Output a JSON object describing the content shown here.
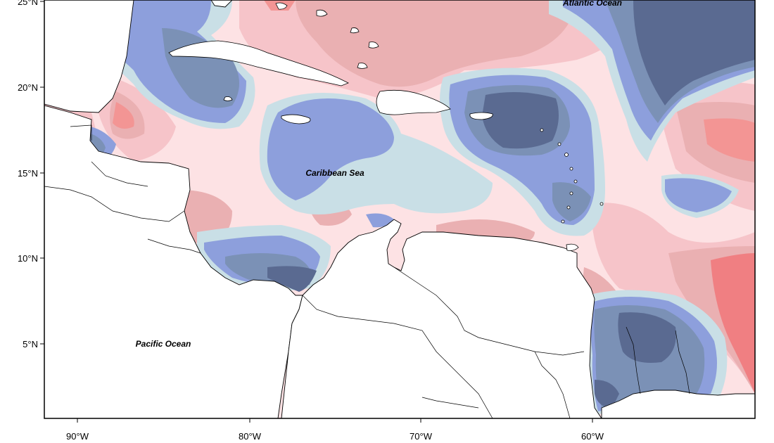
{
  "map": {
    "lat_ticks": [
      "25°N",
      "20°N",
      "15°N",
      "10°N",
      "5°N"
    ],
    "lon_ticks": [
      "90°W",
      "80°W",
      "70°W",
      "60°W"
    ],
    "labels": {
      "atlantic": "Atlantic Ocean",
      "caribbean": "Caribbean Sea",
      "pacific": "Pacific Ocean"
    },
    "colors": {
      "navy": "#5a6a91",
      "slate": "#7b91b6",
      "blue": "#8d9fdc",
      "lightblue": "#c9dfe6",
      "pink_light": "#fde2e4",
      "pink": "#f6c4c9",
      "rose": "#eab0b2",
      "salmon": "#f39594",
      "red": "#f07f82"
    }
  }
}
